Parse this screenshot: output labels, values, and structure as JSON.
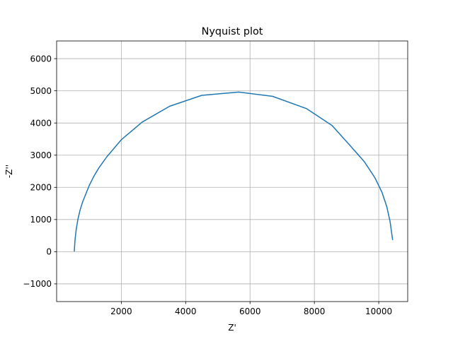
{
  "chart_data": {
    "type": "line",
    "title": "Nyquist plot",
    "xlabel": "Z'",
    "ylabel": "-Z''",
    "xlim": [
      -10,
      10900
    ],
    "ylim": [
      -1550,
      6550
    ],
    "xticks": [
      2000,
      4000,
      6000,
      8000,
      10000
    ],
    "yticks": [
      -1000,
      0,
      1000,
      2000,
      3000,
      4000,
      5000,
      6000
    ],
    "grid": true,
    "series": [
      {
        "color": "#1f77b4",
        "x": [
          540,
          560,
          600,
          650,
          720,
          800,
          900,
          1000,
          1150,
          1300,
          1550,
          2000,
          2650,
          3500,
          4500,
          5650,
          6700,
          7750,
          8550,
          9100,
          9550,
          9880,
          10100,
          10250,
          10350,
          10430
        ],
        "y": [
          20,
          350,
          700,
          1000,
          1300,
          1550,
          1800,
          2050,
          2350,
          2600,
          2950,
          3480,
          4030,
          4520,
          4860,
          4960,
          4830,
          4450,
          3920,
          3310,
          2800,
          2300,
          1850,
          1400,
          950,
          380
        ]
      }
    ]
  }
}
